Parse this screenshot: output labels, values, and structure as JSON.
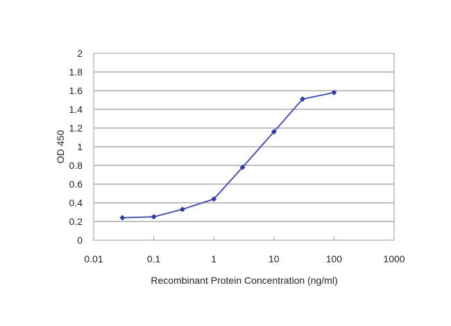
{
  "chart_data": {
    "type": "line",
    "title": "",
    "xlabel": "Recombinant Protein Concentration (ng/ml)",
    "ylabel": "OD 450",
    "x_scale": "log",
    "xlim": [
      0.01,
      1000
    ],
    "ylim": [
      0,
      2
    ],
    "x_ticks": [
      "0.01",
      "0.1",
      "1",
      "10",
      "100",
      "1000"
    ],
    "y_ticks": [
      "0",
      "0.2",
      "0.4",
      "0.6",
      "0.8",
      "1",
      "1.2",
      "1.4",
      "1.6",
      "1.8",
      "2"
    ],
    "grid": "horizontal",
    "series": [
      {
        "x": [
          0.03,
          0.1,
          0.3,
          1,
          3,
          10,
          30,
          100
        ],
        "y": [
          0.24,
          0.25,
          0.33,
          0.44,
          0.78,
          1.16,
          1.51,
          1.58
        ],
        "color": "#2e3a9e"
      }
    ]
  }
}
